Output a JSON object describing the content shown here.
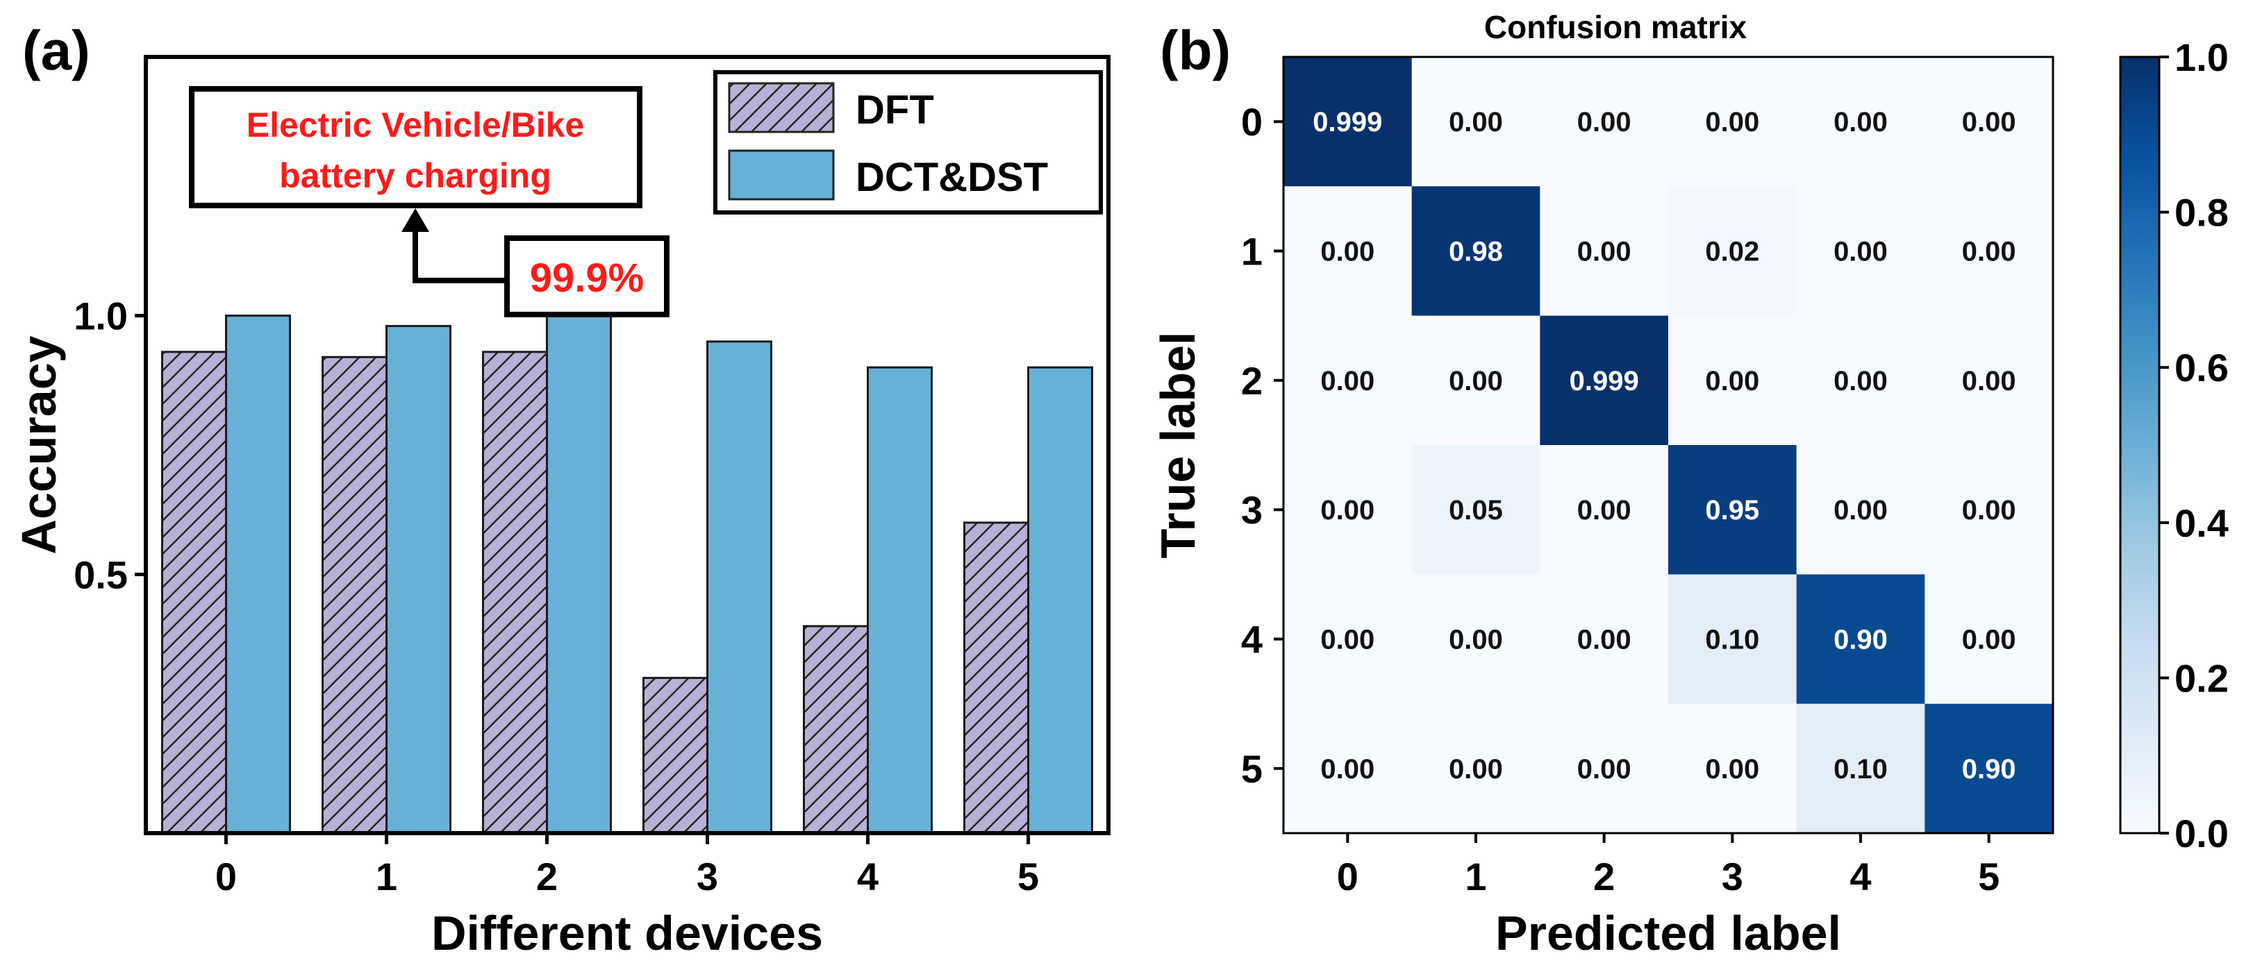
{
  "panel_a_label": "(a)",
  "panel_b_label": "(b)",
  "annotation": {
    "line1": "Electric Vehicle/Bike",
    "line2": "battery charging",
    "percent": "99.9%",
    "color": "#ff1a1a"
  },
  "chart_data": [
    {
      "type": "bar",
      "title": "",
      "xlabel": "Different devices",
      "ylabel": "Accuracy",
      "categories": [
        "0",
        "1",
        "2",
        "3",
        "4",
        "5"
      ],
      "ylim": [
        0,
        1.5
      ],
      "yticks": [
        0.5,
        1.0
      ],
      "ytick_labels": [
        "0.5",
        "1.0"
      ],
      "series": [
        {
          "name": "DFT",
          "values": [
            0.93,
            0.92,
            0.93,
            0.3,
            0.4,
            0.6
          ],
          "color": "#b9b0d6",
          "pattern": "hatch"
        },
        {
          "name": "DCT&DST",
          "values": [
            1.0,
            0.98,
            1.0,
            0.95,
            0.9,
            0.9
          ],
          "color": "#66b2d6"
        }
      ],
      "legend_position": "top-right",
      "grid": false
    },
    {
      "type": "heatmap",
      "title": "Confusion matrix",
      "xlabel": "Predicted label",
      "ylabel": "True label",
      "x_categories": [
        "0",
        "1",
        "2",
        "3",
        "4",
        "5"
      ],
      "y_categories": [
        "0",
        "1",
        "2",
        "3",
        "4",
        "5"
      ],
      "values": [
        [
          0.999,
          0.0,
          0.0,
          0.0,
          0.0,
          0.0
        ],
        [
          0.0,
          0.98,
          0.0,
          0.02,
          0.0,
          0.0
        ],
        [
          0.0,
          0.0,
          0.999,
          0.0,
          0.0,
          0.0
        ],
        [
          0.0,
          0.05,
          0.0,
          0.95,
          0.0,
          0.0
        ],
        [
          0.0,
          0.0,
          0.0,
          0.1,
          0.9,
          0.0
        ],
        [
          0.0,
          0.0,
          0.0,
          0.0,
          0.1,
          0.9
        ]
      ],
      "cell_labels": [
        [
          "0.999",
          "0.00",
          "0.00",
          "0.00",
          "0.00",
          "0.00"
        ],
        [
          "0.00",
          "0.98",
          "0.00",
          "0.02",
          "0.00",
          "0.00"
        ],
        [
          "0.00",
          "0.00",
          "0.999",
          "0.00",
          "0.00",
          "0.00"
        ],
        [
          "0.00",
          "0.05",
          "0.00",
          "0.95",
          "0.00",
          "0.00"
        ],
        [
          "0.00",
          "0.00",
          "0.00",
          "0.10",
          "0.90",
          "0.00"
        ],
        [
          "0.00",
          "0.00",
          "0.00",
          "0.00",
          "0.10",
          "0.90"
        ]
      ],
      "colormap": "Blues",
      "colorbar": {
        "range": [
          0.0,
          1.0
        ],
        "ticks": [
          0.0,
          0.2,
          0.4,
          0.6,
          0.8,
          1.0
        ],
        "tick_labels": [
          "0.0",
          "0.2",
          "0.4",
          "0.6",
          "0.8",
          "1.0"
        ]
      }
    }
  ]
}
